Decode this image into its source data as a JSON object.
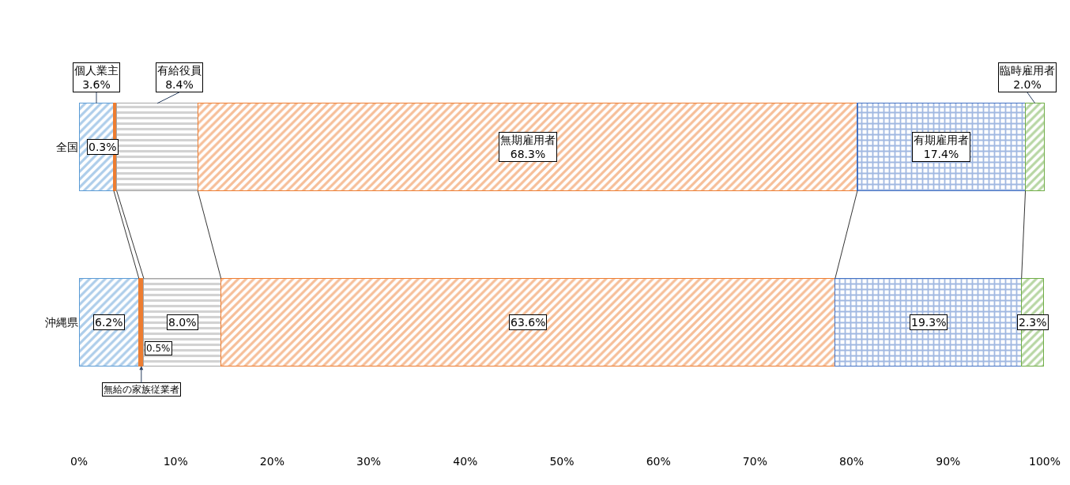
{
  "chart_data": {
    "type": "bar",
    "orientation": "horizontal",
    "stacked": true,
    "categories": [
      "全国",
      "沖縄県"
    ],
    "series": [
      {
        "name": "個人業主",
        "color": "#5b9bd5",
        "values": [
          3.6,
          6.2
        ],
        "value_labels": [
          "3.6%",
          "6.2%"
        ]
      },
      {
        "name": "無給の家族従業者",
        "color": "#ed7d31",
        "values": [
          0.3,
          0.5
        ],
        "value_labels": [
          "0.3%",
          "0.5%"
        ]
      },
      {
        "name": "有給役員",
        "color": "#a6a6a6",
        "values": [
          8.4,
          8.0
        ],
        "value_labels": [
          "8.4%",
          "8.0%"
        ]
      },
      {
        "name": "無期雇用者",
        "color": "#ed7d31",
        "values": [
          68.3,
          63.6
        ],
        "value_labels": [
          "68.3%",
          "63.6%"
        ]
      },
      {
        "name": "有期雇用者",
        "color": "#4472c4",
        "values": [
          17.4,
          19.3
        ],
        "value_labels": [
          "17.4%",
          "19.3%"
        ]
      },
      {
        "name": "臨時雇用者",
        "color": "#70ad47",
        "values": [
          2.0,
          2.3
        ],
        "value_labels": [
          "2.0%",
          "2.3%"
        ]
      }
    ],
    "xlim": [
      0,
      100
    ],
    "xticks": [
      {
        "value": 0,
        "label": "0%"
      },
      {
        "value": 10,
        "label": "10%"
      },
      {
        "value": 20,
        "label": "20%"
      },
      {
        "value": 30,
        "label": "30%"
      },
      {
        "value": 40,
        "label": "40%"
      },
      {
        "value": 50,
        "label": "50%"
      },
      {
        "value": 60,
        "label": "60%"
      },
      {
        "value": 70,
        "label": "70%"
      },
      {
        "value": 80,
        "label": "80%"
      },
      {
        "value": 90,
        "label": "90%"
      },
      {
        "value": 100,
        "label": "100%"
      }
    ],
    "legend": false
  }
}
